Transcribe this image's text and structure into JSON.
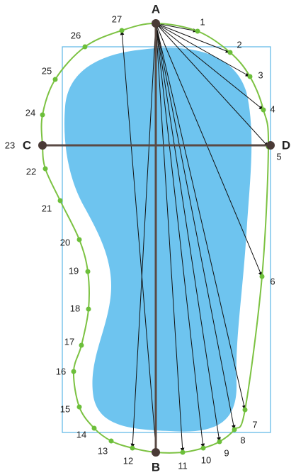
{
  "labels": {
    "top": "A",
    "bottom": "B",
    "left": "C",
    "right": "D"
  },
  "points": [
    "1",
    "2",
    "3",
    "4",
    "5",
    "6",
    "7",
    "8",
    "9",
    "10",
    "11",
    "12",
    "13",
    "14",
    "15",
    "16",
    "17",
    "18",
    "19",
    "20",
    "21",
    "22",
    "23",
    "24",
    "25",
    "26",
    "27"
  ]
}
